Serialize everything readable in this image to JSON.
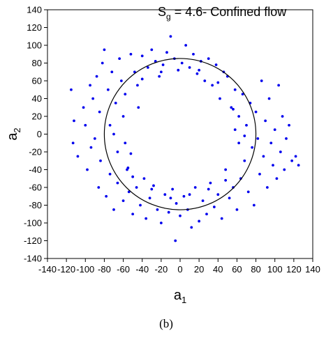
{
  "chart_data": {
    "type": "scatter",
    "title_main": "S",
    "title_sub": "g",
    "title_rest": " = 4.6- Confined flow",
    "xlabel_main": "a",
    "xlabel_sub": "1",
    "ylabel_main": "a",
    "ylabel_sub": "2",
    "xlim": [
      -140,
      140
    ],
    "ylim": [
      -140,
      140
    ],
    "x_ticks": [
      -140,
      -120,
      -100,
      -80,
      -60,
      -40,
      -20,
      0,
      20,
      40,
      60,
      80,
      100,
      120,
      140
    ],
    "y_ticks": [
      -140,
      -120,
      -100,
      -80,
      -60,
      -40,
      -20,
      0,
      20,
      40,
      60,
      80,
      100,
      120,
      140
    ],
    "x_tick_labels": [
      "-140",
      "-120",
      "-100",
      "-80",
      "-60",
      "-40",
      "-20",
      "0",
      "20",
      "40",
      "60",
      "80",
      "100",
      "120",
      "140"
    ],
    "y_tick_labels": [
      "-140",
      "-120",
      "-100",
      "-80",
      "-60",
      "-40",
      "-20",
      "0",
      "20",
      "40",
      "60",
      "80",
      "100",
      "120",
      "140"
    ],
    "circle": {
      "cx": 0,
      "cy": 0,
      "r": 80
    },
    "series": [
      {
        "point_color": "#0000ee",
        "points": [
          [
            -115,
            50
          ],
          [
            -112,
            15
          ],
          [
            -113,
            -10
          ],
          [
            -108,
            -25
          ],
          [
            -102,
            30
          ],
          [
            -100,
            10
          ],
          [
            -98,
            -40
          ],
          [
            -95,
            55
          ],
          [
            -94,
            -15
          ],
          [
            -92,
            40
          ],
          [
            -90,
            -5
          ],
          [
            -88,
            65
          ],
          [
            -86,
            -60
          ],
          [
            -85,
            25
          ],
          [
            -84,
            -30
          ],
          [
            -82,
            80
          ],
          [
            -80,
            95
          ],
          [
            -78,
            -70
          ],
          [
            -76,
            50
          ],
          [
            -74,
            -45
          ],
          [
            -72,
            70
          ],
          [
            -70,
            -85
          ],
          [
            -68,
            35
          ],
          [
            -66,
            -55
          ],
          [
            -64,
            85
          ],
          [
            -62,
            60
          ],
          [
            -60,
            -75
          ],
          [
            -58,
            45
          ],
          [
            -56,
            -40
          ],
          [
            -55,
            -38
          ],
          [
            -54,
            -65
          ],
          [
            -52,
            90
          ],
          [
            -50,
            -90
          ],
          [
            -48,
            70
          ],
          [
            -46,
            -60
          ],
          [
            -44,
            30
          ],
          [
            -42,
            -80
          ],
          [
            -40,
            88
          ],
          [
            -38,
            -50
          ],
          [
            -36,
            -95
          ],
          [
            -34,
            75
          ],
          [
            -32,
            -72
          ],
          [
            -30,
            95
          ],
          [
            -28,
            -58
          ],
          [
            -26,
            82
          ],
          [
            -24,
            -85
          ],
          [
            -22,
            65
          ],
          [
            -20,
            -100
          ],
          [
            -18,
            78
          ],
          [
            -16,
            -68
          ],
          [
            -14,
            92
          ],
          [
            -12,
            -88
          ],
          [
            -10,
            110
          ],
          [
            -8,
            -62
          ],
          [
            -6,
            85
          ],
          [
            -5,
            -120
          ],
          [
            -4,
            -78
          ],
          [
            -2,
            72
          ],
          [
            0,
            -92
          ],
          [
            2,
            80
          ],
          [
            4,
            -70
          ],
          [
            6,
            100
          ],
          [
            8,
            -85
          ],
          [
            10,
            75
          ],
          [
            12,
            -105
          ],
          [
            14,
            90
          ],
          [
            16,
            -60
          ],
          [
            18,
            68
          ],
          [
            20,
            -98
          ],
          [
            22,
            82
          ],
          [
            24,
            -75
          ],
          [
            26,
            60
          ],
          [
            28,
            -90
          ],
          [
            30,
            85
          ],
          [
            32,
            -55
          ],
          [
            34,
            55
          ],
          [
            36,
            -82
          ],
          [
            38,
            78
          ],
          [
            40,
            -68
          ],
          [
            42,
            40
          ],
          [
            44,
            -95
          ],
          [
            46,
            70
          ],
          [
            48,
            -40
          ],
          [
            50,
            65
          ],
          [
            52,
            -72
          ],
          [
            54,
            30
          ],
          [
            56,
            -60
          ],
          [
            58,
            50
          ],
          [
            60,
            -85
          ],
          [
            62,
            20
          ],
          [
            64,
            -50
          ],
          [
            66,
            45
          ],
          [
            68,
            -30
          ],
          [
            70,
            10
          ],
          [
            72,
            -65
          ],
          [
            74,
            35
          ],
          [
            76,
            -15
          ],
          [
            78,
            -80
          ],
          [
            80,
            25
          ],
          [
            82,
            -5
          ],
          [
            84,
            -45
          ],
          [
            86,
            60
          ],
          [
            88,
            -25
          ],
          [
            90,
            15
          ],
          [
            92,
            -60
          ],
          [
            94,
            40
          ],
          [
            96,
            -10
          ],
          [
            98,
            -35
          ],
          [
            100,
            5
          ],
          [
            102,
            -50
          ],
          [
            104,
            55
          ],
          [
            106,
            -20
          ],
          [
            108,
            20
          ],
          [
            110,
            -40
          ],
          [
            112,
            -5
          ],
          [
            115,
            10
          ],
          [
            118,
            -30
          ],
          [
            122,
            -25
          ],
          [
            125,
            -35
          ],
          [
            -60,
            20
          ],
          [
            -66,
            -20
          ],
          [
            -70,
            0
          ],
          [
            -74,
            10
          ],
          [
            -52,
            -22
          ],
          [
            -58,
            -10
          ],
          [
            62,
            -10
          ],
          [
            68,
            -2
          ],
          [
            58,
            5
          ],
          [
            56,
            28
          ],
          [
            -45,
            55
          ],
          [
            -40,
            62
          ],
          [
            -20,
            70
          ],
          [
            20,
            72
          ],
          [
            40,
            58
          ],
          [
            -30,
            -62
          ],
          [
            -10,
            -72
          ],
          [
            10,
            -68
          ],
          [
            30,
            -62
          ],
          [
            48,
            -52
          ],
          [
            -50,
            -48
          ]
        ]
      }
    ],
    "caption": "(b)"
  }
}
